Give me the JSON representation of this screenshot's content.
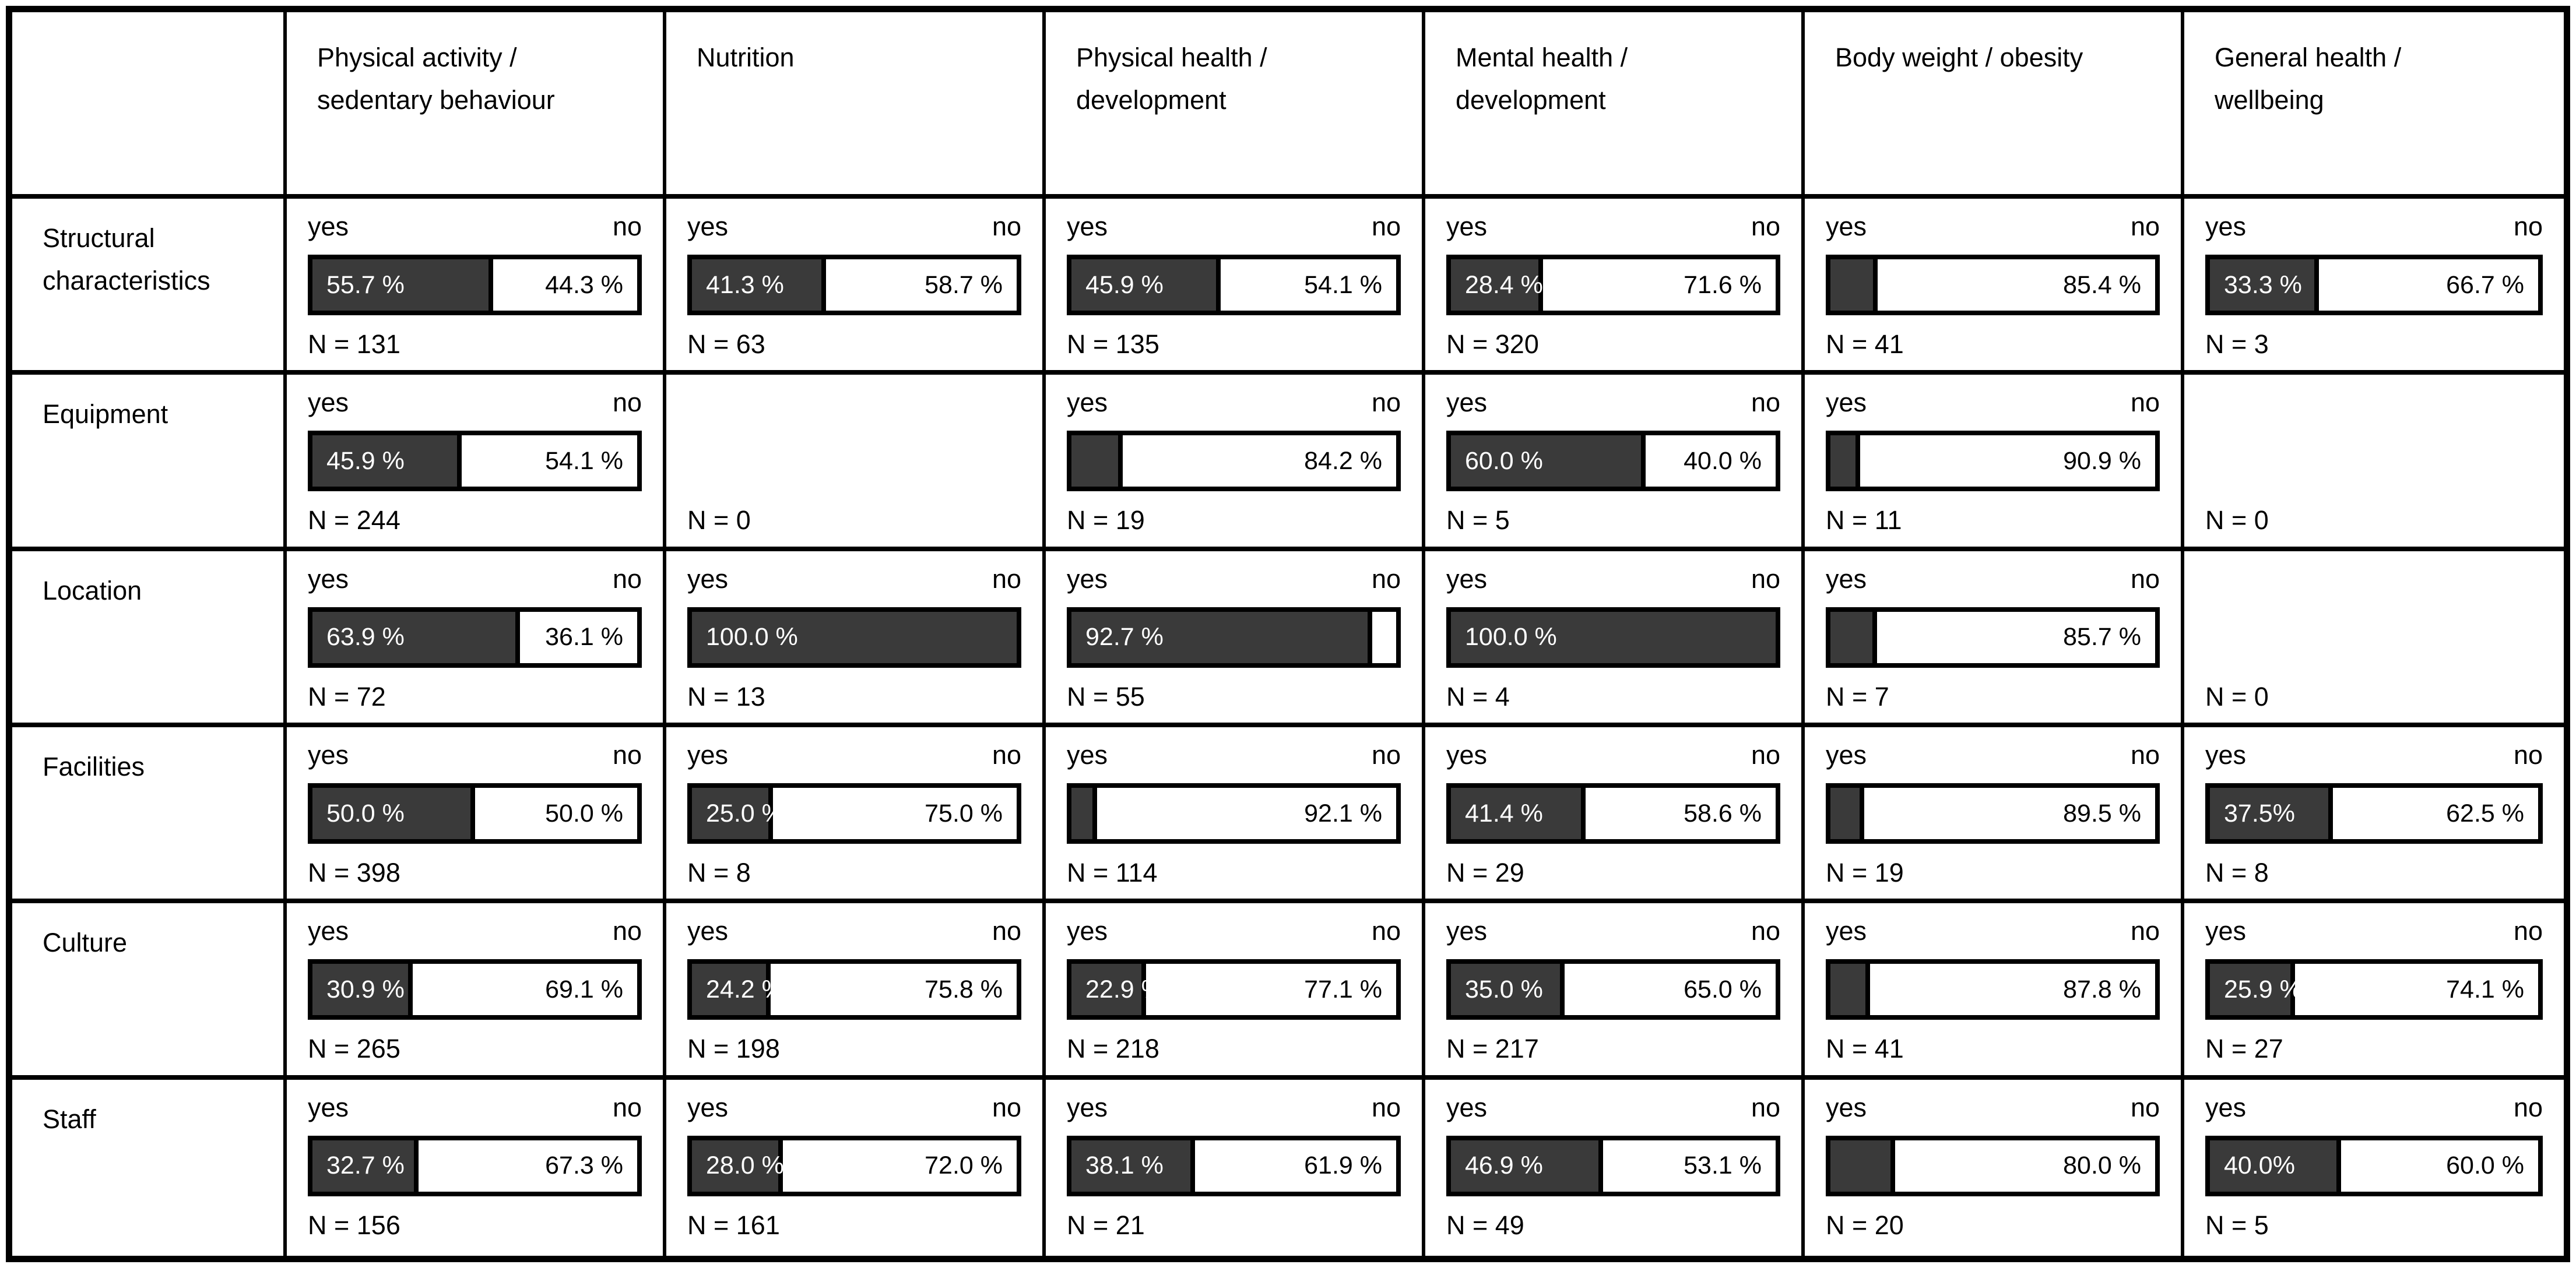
{
  "figure": {
    "background": "#ffffff",
    "line_color": "#000000",
    "bar_fill_color": "#3a3a3a",
    "bar_empty_color": "#ffffff"
  },
  "chart_data": {
    "type": "bar",
    "subtype": "matrix-of-stacked-yes-no-bars",
    "title": "",
    "legend": {
      "yes": "yes",
      "no": "no"
    },
    "columns": [
      "Physical activity /\nsedentary behaviour",
      "Nutrition",
      "Physical health /\ndevelopment",
      "Mental health /\ndevelopment",
      "Body weight / obesity",
      "General health /\nwellbeing"
    ],
    "rows": [
      {
        "label": "Structural\ncharacteristics",
        "cells": [
          {
            "yes": 55.7,
            "no": 44.3,
            "n": 131,
            "yes_label": "55.7 %",
            "no_label": "44.3 %",
            "n_label": "N = 131"
          },
          {
            "yes": 41.3,
            "no": 58.7,
            "n": 63,
            "yes_label": "41.3 %",
            "no_label": "58.7 %",
            "n_label": "N = 63"
          },
          {
            "yes": 45.9,
            "no": 54.1,
            "n": 135,
            "yes_label": "45.9 %",
            "no_label": "54.1 %",
            "n_label": "N = 135"
          },
          {
            "yes": 28.4,
            "no": 71.6,
            "n": 320,
            "yes_label": "28.4 %",
            "no_label": "71.6 %",
            "n_label": "N = 320"
          },
          {
            "yes": 14.6,
            "no": 85.4,
            "n": 41,
            "yes_label": "",
            "no_label": "85.4 %",
            "n_label": "N = 41"
          },
          {
            "yes": 33.3,
            "no": 66.7,
            "n": 3,
            "yes_label": "33.3 %",
            "no_label": "66.7 %",
            "n_label": "N = 3"
          }
        ]
      },
      {
        "label": "Equipment",
        "cells": [
          {
            "yes": 45.9,
            "no": 54.1,
            "n": 244,
            "yes_label": "45.9 %",
            "no_label": "54.1 %",
            "n_label": "N = 244"
          },
          {
            "yes": null,
            "no": null,
            "n": 0,
            "yes_label": "",
            "no_label": "",
            "n_label": "N = 0"
          },
          {
            "yes": 15.8,
            "no": 84.2,
            "n": 19,
            "yes_label": "",
            "no_label": "84.2 %",
            "n_label": "N = 19"
          },
          {
            "yes": 60.0,
            "no": 40.0,
            "n": 5,
            "yes_label": "60.0 %",
            "no_label": "40.0 %",
            "n_label": "N = 5"
          },
          {
            "yes": 9.1,
            "no": 90.9,
            "n": 11,
            "yes_label": "",
            "no_label": "90.9 %",
            "n_label": "N = 11"
          },
          {
            "yes": null,
            "no": null,
            "n": 0,
            "yes_label": "",
            "no_label": "",
            "n_label": "N = 0"
          }
        ]
      },
      {
        "label": "Location",
        "cells": [
          {
            "yes": 63.9,
            "no": 36.1,
            "n": 72,
            "yes_label": "63.9 %",
            "no_label": "36.1 %",
            "n_label": "N = 72"
          },
          {
            "yes": 100.0,
            "no": 0.0,
            "n": 13,
            "yes_label": "100.0 %",
            "no_label": "",
            "n_label": "N = 13"
          },
          {
            "yes": 92.7,
            "no": 7.3,
            "n": 55,
            "yes_label": "92.7 %",
            "no_label": "",
            "n_label": "N = 55"
          },
          {
            "yes": 100.0,
            "no": 0.0,
            "n": 4,
            "yes_label": "100.0 %",
            "no_label": "",
            "n_label": "N = 4"
          },
          {
            "yes": 14.3,
            "no": 85.7,
            "n": 7,
            "yes_label": "",
            "no_label": "85.7 %",
            "n_label": "N = 7"
          },
          {
            "yes": null,
            "no": null,
            "n": 0,
            "yes_label": "",
            "no_label": "",
            "n_label": "N = 0"
          }
        ]
      },
      {
        "label": "Facilities",
        "cells": [
          {
            "yes": 50.0,
            "no": 50.0,
            "n": 398,
            "yes_label": "50.0 %",
            "no_label": "50.0 %",
            "n_label": "N = 398"
          },
          {
            "yes": 25.0,
            "no": 75.0,
            "n": 8,
            "yes_label": "25.0 %",
            "no_label": "75.0 %",
            "n_label": "N = 8"
          },
          {
            "yes": 7.9,
            "no": 92.1,
            "n": 114,
            "yes_label": "",
            "no_label": "92.1 %",
            "n_label": "N = 114"
          },
          {
            "yes": 41.4,
            "no": 58.6,
            "n": 29,
            "yes_label": "41.4 %",
            "no_label": "58.6 %",
            "n_label": "N = 29"
          },
          {
            "yes": 10.5,
            "no": 89.5,
            "n": 19,
            "yes_label": "",
            "no_label": "89.5 %",
            "n_label": "N = 19"
          },
          {
            "yes": 37.5,
            "no": 62.5,
            "n": 8,
            "yes_label": "37.5%",
            "no_label": "62.5 %",
            "n_label": "N = 8"
          }
        ]
      },
      {
        "label": "Culture",
        "cells": [
          {
            "yes": 30.9,
            "no": 69.1,
            "n": 265,
            "yes_label": "30.9 %",
            "no_label": "69.1 %",
            "n_label": "N = 265"
          },
          {
            "yes": 24.2,
            "no": 75.8,
            "n": 198,
            "yes_label": "24.2 %",
            "no_label": "75.8 %",
            "n_label": "N = 198"
          },
          {
            "yes": 22.9,
            "no": 77.1,
            "n": 218,
            "yes_label": "22.9 %",
            "no_label": "77.1 %",
            "n_label": "N = 218"
          },
          {
            "yes": 35.0,
            "no": 65.0,
            "n": 217,
            "yes_label": "35.0 %",
            "no_label": "65.0 %",
            "n_label": "N = 217"
          },
          {
            "yes": 12.2,
            "no": 87.8,
            "n": 41,
            "yes_label": "",
            "no_label": "87.8 %",
            "n_label": "N = 41"
          },
          {
            "yes": 25.9,
            "no": 74.1,
            "n": 27,
            "yes_label": "25.9 %",
            "no_label": "74.1 %",
            "n_label": "N = 27"
          }
        ]
      },
      {
        "label": "Staff",
        "cells": [
          {
            "yes": 32.7,
            "no": 67.3,
            "n": 156,
            "yes_label": "32.7 %",
            "no_label": "67.3 %",
            "n_label": "N = 156"
          },
          {
            "yes": 28.0,
            "no": 72.0,
            "n": 161,
            "yes_label": "28.0 %",
            "no_label": "72.0 %",
            "n_label": "N = 161"
          },
          {
            "yes": 38.1,
            "no": 61.9,
            "n": 21,
            "yes_label": "38.1 %",
            "no_label": "61.9 %",
            "n_label": "N = 21"
          },
          {
            "yes": 46.9,
            "no": 53.1,
            "n": 49,
            "yes_label": "46.9 %",
            "no_label": "53.1 %",
            "n_label": "N = 49"
          },
          {
            "yes": 20.0,
            "no": 80.0,
            "n": 20,
            "yes_label": "",
            "no_label": "80.0 %",
            "n_label": "N = 20"
          },
          {
            "yes": 40.0,
            "no": 60.0,
            "n": 5,
            "yes_label": "40.0%",
            "no_label": "60.0 %",
            "n_label": "N = 5"
          }
        ]
      }
    ]
  }
}
